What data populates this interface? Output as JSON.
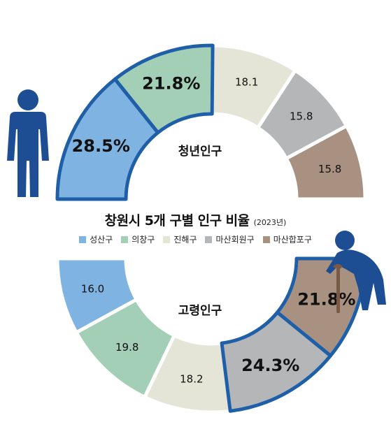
{
  "colors": {
    "seongsan": "#7fb3e1",
    "uichang": "#a3cfb7",
    "jinhae": "#e4e5d7",
    "masan_hoewon": "#b5b6b8",
    "masan_happo": "#a89181",
    "highlight_border": "#1f5fa8",
    "figure": "#1d4e93"
  },
  "chart_data": {
    "title": "창원시 5개 구별 인구 비율",
    "subtitle": "(2023년)",
    "legend": [
      "성산구",
      "의창구",
      "진해구",
      "마산회원구",
      "마산합포구"
    ],
    "charts": [
      {
        "type": "pie",
        "name": "청년인구",
        "categories": [
          "성산구",
          "의창구",
          "진해구",
          "마산회원구",
          "마산합포구"
        ],
        "values": [
          28.5,
          21.8,
          18.1,
          15.8,
          15.8
        ],
        "labels": [
          "28.5%",
          "21.8%",
          "18.1",
          "15.8",
          "15.8"
        ]
      },
      {
        "type": "pie",
        "name": "고령인구",
        "categories": [
          "성산구",
          "의창구",
          "진해구",
          "마산회원구",
          "마산합포구"
        ],
        "values": [
          16.0,
          19.8,
          18.2,
          24.3,
          21.8
        ],
        "labels": [
          "16.0",
          "19.8",
          "18.2",
          "24.3%",
          "21.8%"
        ]
      }
    ]
  }
}
